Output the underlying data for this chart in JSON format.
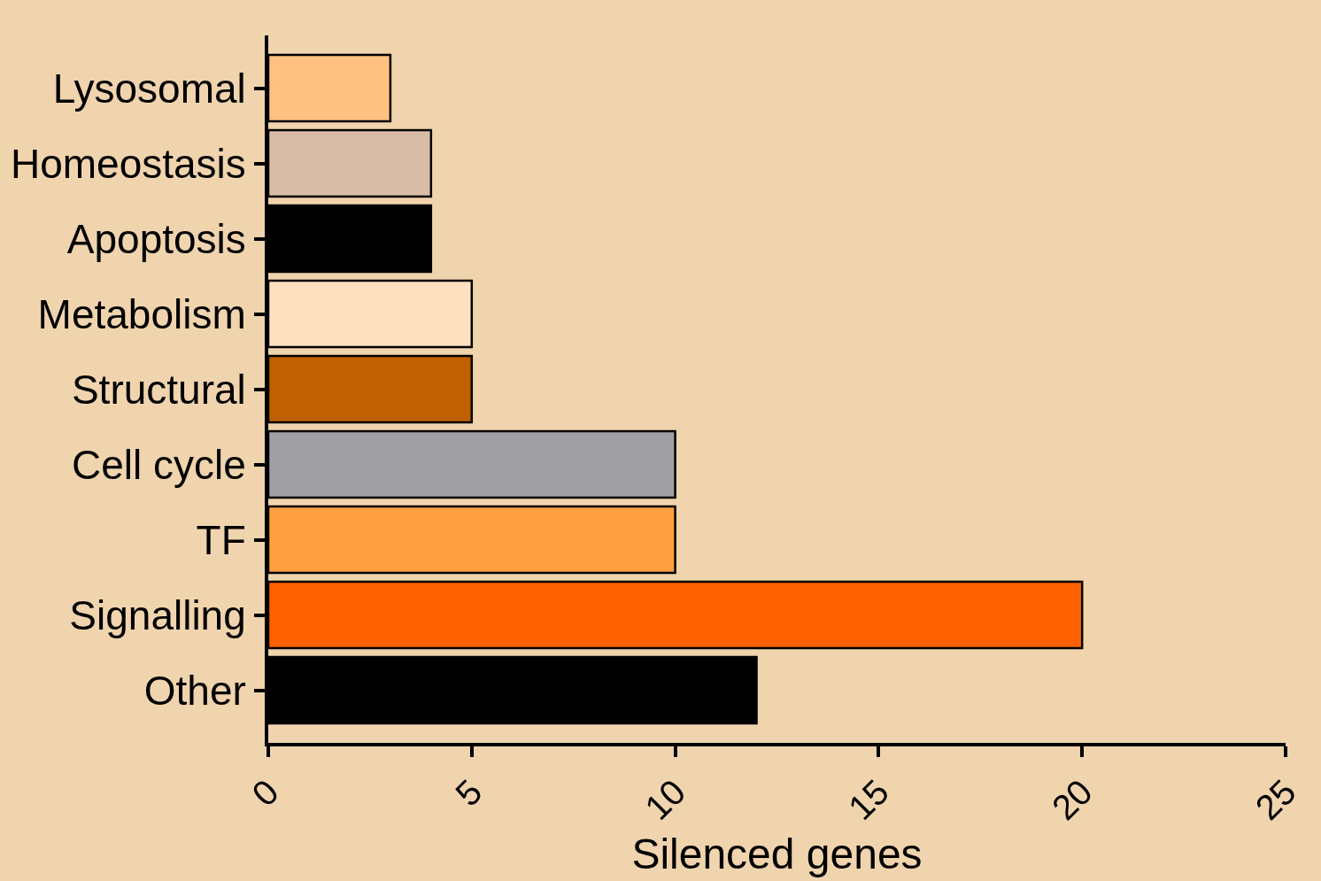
{
  "chart_data": {
    "type": "bar",
    "orientation": "horizontal",
    "xlabel": "Silenced genes",
    "categories": [
      "Lysosomal",
      "Homeostasis",
      "Apoptosis",
      "Metabolism",
      "Structural",
      "Cell cycle",
      "TF",
      "Signalling",
      "Other"
    ],
    "values": [
      3,
      4,
      4,
      5,
      5,
      10,
      10,
      20,
      12
    ],
    "colors": [
      "#ffc080",
      "#d9bca6",
      "#000000",
      "#ffe0c0",
      "#c06000",
      "#a0a0a4",
      "#ffa040",
      "#ff6000",
      "#000000"
    ],
    "xlim": [
      0,
      25
    ],
    "xticks": [
      0,
      5,
      10,
      15,
      20,
      25
    ],
    "grid": false,
    "legend": false
  }
}
